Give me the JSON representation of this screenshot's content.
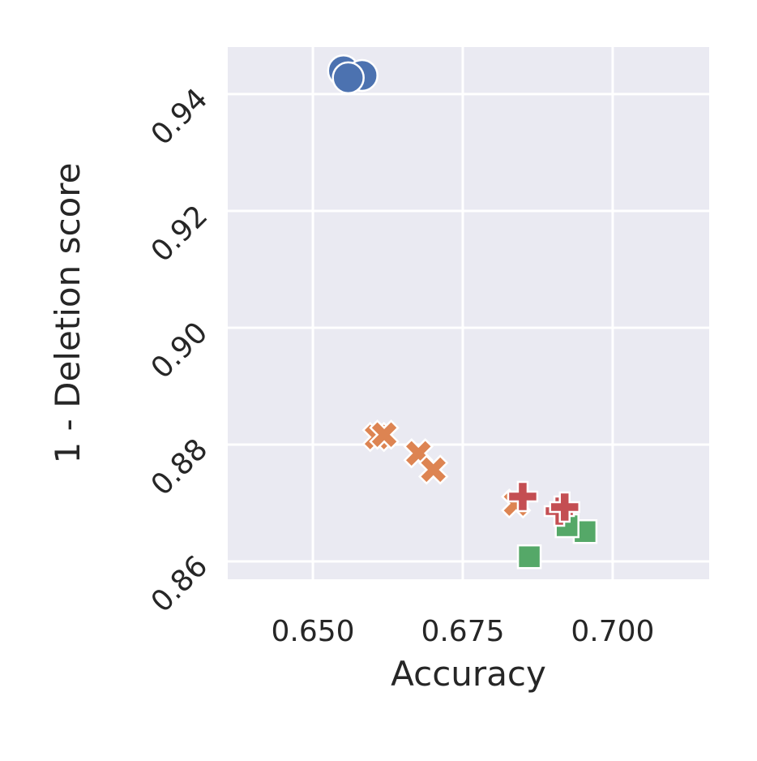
{
  "chart_data": {
    "type": "scatter",
    "xlabel": "Accuracy",
    "ylabel": "1 - Deletion score",
    "xlim": [
      0.6358,
      0.7161
    ],
    "ylim": [
      0.85694,
      0.94806
    ],
    "xticks": [
      {
        "value": 0.65,
        "label": "0.650"
      },
      {
        "value": 0.675,
        "label": "0.675"
      },
      {
        "value": 0.7,
        "label": "0.700"
      }
    ],
    "yticks": [
      0.86,
      0.88,
      {
        "value": 0.9,
        "label": "0.90"
      },
      0.92,
      0.94
    ],
    "grid": true,
    "series": [
      {
        "color": "#4c72b0",
        "marker": "circle",
        "x": [
          0.6551,
          0.6582,
          0.6559
        ],
        "y": [
          0.944,
          0.9432,
          0.9428
        ]
      },
      {
        "color": "#dd8452",
        "marker": "x",
        "x": [
          0.6607,
          0.6619,
          0.6676,
          0.6701,
          0.6839
        ],
        "y": [
          0.8813,
          0.8817,
          0.8785,
          0.8757,
          0.8699
        ]
      },
      {
        "color": "#55a868",
        "marker": "square",
        "x": [
          0.6861,
          0.6954,
          0.6924
        ],
        "y": [
          0.8608,
          0.8651,
          0.8661
        ]
      },
      {
        "color": "#c44e52",
        "marker": "plus",
        "x": [
          0.685,
          0.6911,
          0.692
        ],
        "y": [
          0.8711,
          0.8686,
          0.8693
        ]
      }
    ]
  }
}
